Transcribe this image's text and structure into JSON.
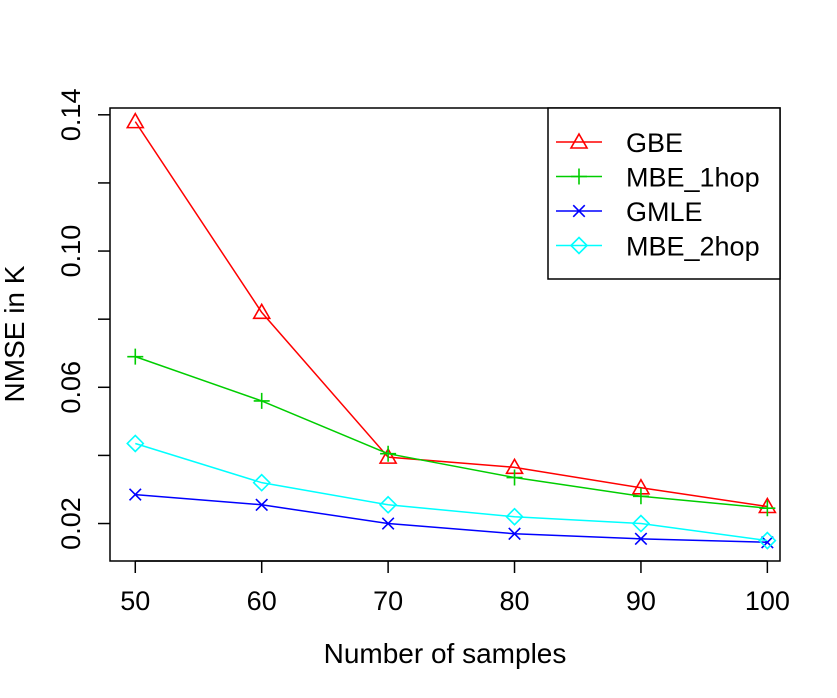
{
  "chart_data": {
    "type": "line",
    "title": "",
    "xlabel": "Number of samples",
    "ylabel": "NMSE in K",
    "x": [
      50,
      60,
      70,
      80,
      90,
      100
    ],
    "xlim": [
      48,
      101
    ],
    "ylim": [
      0.009,
      0.142
    ],
    "xticks": [
      50,
      60,
      70,
      80,
      90,
      100
    ],
    "yticks": [
      0.02,
      0.04,
      0.06,
      0.08,
      0.1,
      0.12,
      0.14
    ],
    "ytick_labels": [
      "0.02",
      "",
      "0.06",
      "",
      "0.10",
      "",
      "0.14"
    ],
    "xtick_labels": [
      "50",
      "60",
      "70",
      "80",
      "90",
      "100"
    ],
    "grid": false,
    "legend_position": "top-right",
    "series": [
      {
        "name": "GBE",
        "color": "#ff0000",
        "marker": "triangle",
        "values": [
          0.138,
          0.082,
          0.0395,
          0.0365,
          0.0305,
          0.025
        ]
      },
      {
        "name": "MBE_1hop",
        "color": "#00cd00",
        "marker": "plus",
        "values": [
          0.069,
          0.056,
          0.0405,
          0.0335,
          0.028,
          0.0245
        ]
      },
      {
        "name": "GMLE",
        "color": "#0000ff",
        "marker": "cross",
        "values": [
          0.0285,
          0.0255,
          0.02,
          0.017,
          0.0155,
          0.0145
        ]
      },
      {
        "name": "MBE_2hop",
        "color": "#00ffff",
        "marker": "diamond",
        "values": [
          0.0435,
          0.032,
          0.0255,
          0.022,
          0.02,
          0.015
        ]
      }
    ]
  }
}
